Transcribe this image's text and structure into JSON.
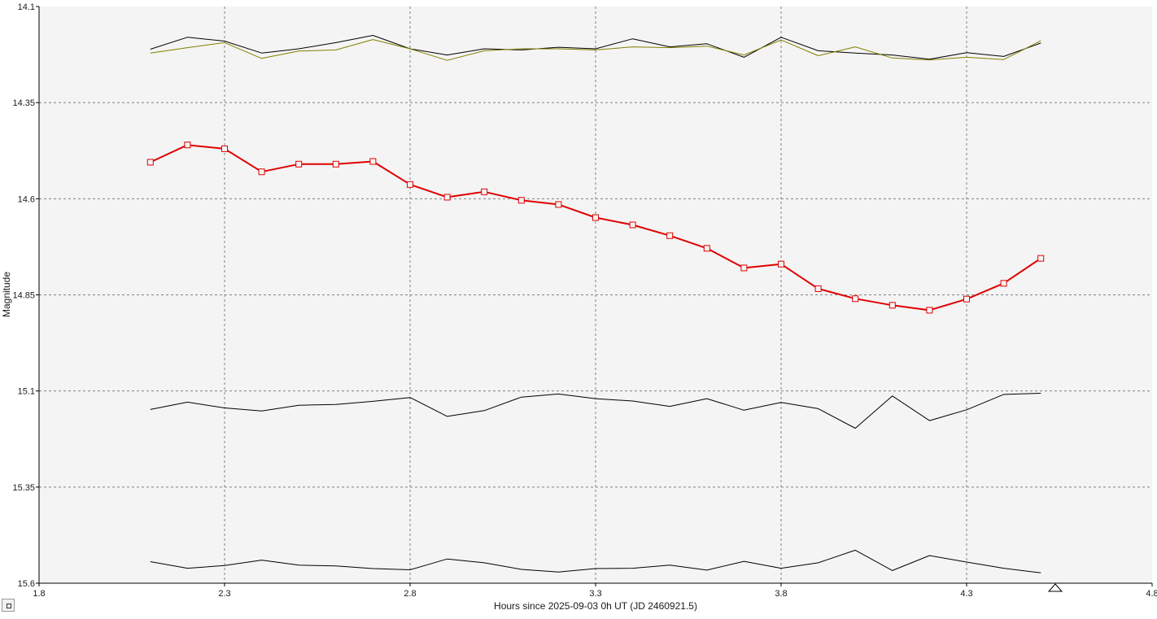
{
  "chart_data": {
    "type": "line",
    "xlabel": "Hours since 2025-09-03 0h UT (JD 2460921.5)",
    "ylabel": "Magnitude",
    "xlim": [
      1.8,
      4.8
    ],
    "ylim": [
      14.1,
      15.6
    ],
    "y_inverted": true,
    "grid": true,
    "x_ticks": [
      "1.8",
      "2.3",
      "2.8",
      "3.3",
      "3.8",
      "4.3",
      "4.8"
    ],
    "y_ticks": [
      "14.1",
      "14.35",
      "14.6",
      "14.85",
      "15.1",
      "15.35",
      "15.6"
    ],
    "x": [
      2.1,
      2.2,
      2.3,
      2.4,
      2.5,
      2.6,
      2.7,
      2.8,
      2.9,
      3.0,
      3.1,
      3.2,
      3.3,
      3.4,
      3.5,
      3.6,
      3.7,
      3.8,
      3.9,
      4.0,
      4.1,
      4.2,
      4.3,
      4.4,
      4.5
    ],
    "series": [
      {
        "color": "#000000",
        "markers": false,
        "width": 1,
        "values": [
          14.211,
          14.18,
          14.19,
          14.221,
          14.21,
          14.194,
          14.175,
          14.21,
          14.226,
          14.21,
          14.213,
          14.206,
          14.21,
          14.184,
          14.205,
          14.197,
          14.232,
          14.18,
          14.215,
          14.221,
          14.226,
          14.237,
          14.22,
          14.23,
          14.195
        ]
      },
      {
        "color": "#808000",
        "markers": false,
        "width": 1,
        "values": [
          14.221,
          14.207,
          14.194,
          14.235,
          14.216,
          14.213,
          14.186,
          14.21,
          14.24,
          14.215,
          14.21,
          14.21,
          14.213,
          14.205,
          14.207,
          14.203,
          14.226,
          14.187,
          14.228,
          14.205,
          14.234,
          14.239,
          14.232,
          14.238,
          14.189
        ]
      },
      {
        "color": "#e00000",
        "markers": true,
        "width": 2,
        "values": [
          14.505,
          14.46,
          14.47,
          14.53,
          14.51,
          14.51,
          14.503,
          14.563,
          14.596,
          14.582,
          14.604,
          14.615,
          14.649,
          14.668,
          14.696,
          14.729,
          14.78,
          14.77,
          14.834,
          14.86,
          14.877,
          14.89,
          14.861,
          14.82,
          14.755
        ]
      },
      {
        "color": "#000000",
        "markers": false,
        "width": 1,
        "values": [
          15.148,
          15.129,
          15.144,
          15.152,
          15.137,
          15.135,
          15.127,
          15.117,
          15.166,
          15.151,
          15.116,
          15.108,
          15.12,
          15.126,
          15.14,
          15.12,
          15.15,
          15.13,
          15.146,
          15.197,
          15.113,
          15.177,
          15.149,
          15.109,
          15.106
        ]
      },
      {
        "color": "#000000",
        "markers": false,
        "width": 1,
        "values": [
          15.544,
          15.561,
          15.554,
          15.54,
          15.553,
          15.555,
          15.562,
          15.565,
          15.537,
          15.547,
          15.564,
          15.571,
          15.562,
          15.561,
          15.553,
          15.566,
          15.543,
          15.561,
          15.547,
          15.514,
          15.567,
          15.528,
          15.545,
          15.561,
          15.573
        ]
      }
    ]
  }
}
